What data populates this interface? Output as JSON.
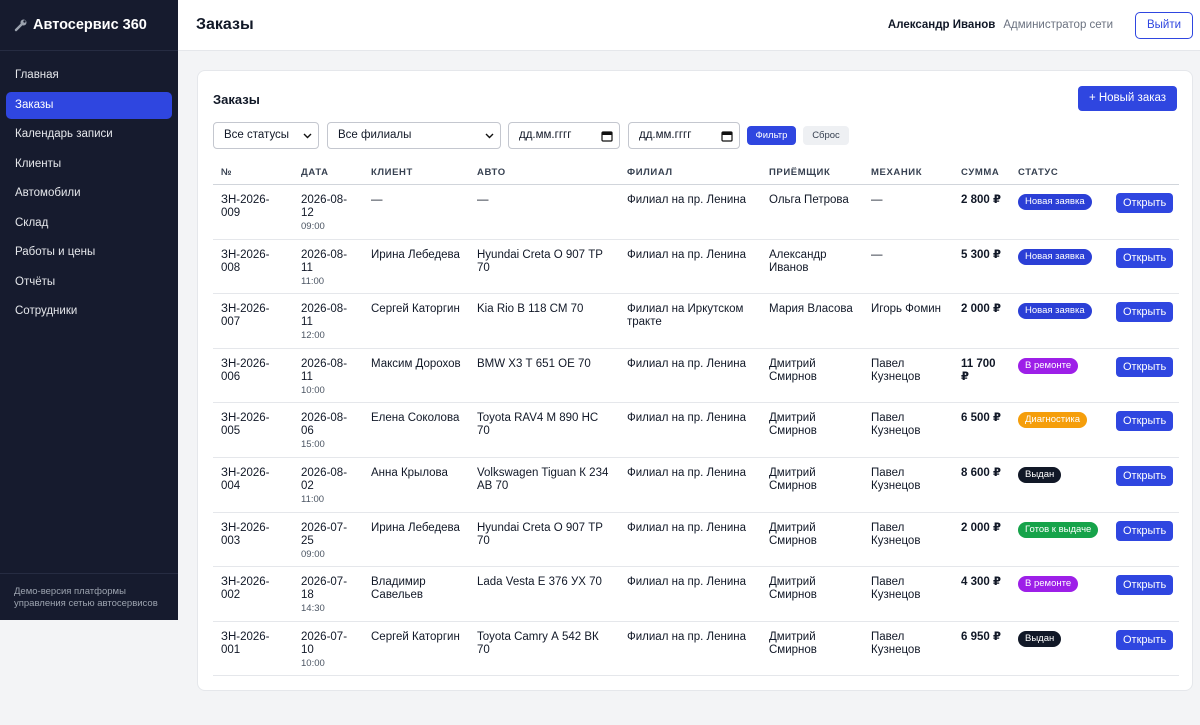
{
  "sidebar": {
    "logo": "Автосервис 360",
    "nav": [
      "Главная",
      "Заказы",
      "Календарь записи",
      "Клиенты",
      "Автомобили",
      "Склад",
      "Работы и цены",
      "Отчёты",
      "Сотрудники"
    ],
    "footer": "Демо-версия платформы управления сетью автосервисов"
  },
  "header": {
    "title": "Заказы",
    "user": "Александр Иванов",
    "role": "Администратор сети",
    "logout": "Выйти"
  },
  "card": {
    "title": "Заказы",
    "new_button": "+ Новый заказ",
    "filters": {
      "status": "Все статусы",
      "branch": "Все филиалы",
      "date_from": "дд.мм.гггг",
      "date_to": "дд.мм.гггг",
      "apply": "Фильтр",
      "reset": "Сброс"
    }
  },
  "table": {
    "columns": [
      "№",
      "ДАТА",
      "КЛИЕНТ",
      "АВТО",
      "ФИЛИАЛ",
      "ПРИЁМЩИК",
      "МЕХАНИК",
      "СУММА",
      "СТАТУС"
    ],
    "rows": [
      {
        "id": "ЗН-2026-009",
        "date": "2026-08-12",
        "time": "09:00",
        "client": "—",
        "car": "—",
        "branch": "Филиал на пр. Ленина",
        "receiver": "Ольга Петрова",
        "mechanic": "—",
        "sum": "2 800 ₽",
        "status": "Новая заявка",
        "action": "Открыть"
      },
      {
        "id": "ЗН-2026-008",
        "date": "2026-08-11",
        "time": "11:00",
        "client": "Ирина Лебедева",
        "car": "Hyundai Creta О 907 ТР 70",
        "branch": "Филиал на пр. Ленина",
        "receiver": "Александр Иванов",
        "mechanic": "—",
        "sum": "5 300 ₽",
        "status": "Новая заявка",
        "action": "Открыть"
      },
      {
        "id": "ЗН-2026-007",
        "date": "2026-08-11",
        "time": "12:00",
        "client": "Сергей Каторгин",
        "car": "Kia Rio В 118 СМ 70",
        "branch": "Филиал на Иркутском тракте",
        "receiver": "Мария Власова",
        "mechanic": "Игорь Фомин",
        "sum": "2 000 ₽",
        "status": "Новая заявка",
        "action": "Открыть"
      },
      {
        "id": "ЗН-2026-006",
        "date": "2026-08-11",
        "time": "10:00",
        "client": "Максим Дорохов",
        "car": "BMW X3 Т 651 ОЕ 70",
        "branch": "Филиал на пр. Ленина",
        "receiver": "Дмитрий Смирнов",
        "mechanic": "Павел Кузнецов",
        "sum": "11 700 ₽",
        "status": "В ремонте",
        "action": "Открыть"
      },
      {
        "id": "ЗН-2026-005",
        "date": "2026-08-06",
        "time": "15:00",
        "client": "Елена Соколова",
        "car": "Toyota RAV4 М 890 НС 70",
        "branch": "Филиал на пр. Ленина",
        "receiver": "Дмитрий Смирнов",
        "mechanic": "Павел Кузнецов",
        "sum": "6 500 ₽",
        "status": "Диагностика",
        "action": "Открыть"
      },
      {
        "id": "ЗН-2026-004",
        "date": "2026-08-02",
        "time": "11:00",
        "client": "Анна Крылова",
        "car": "Volkswagen Tiguan К 234 АВ 70",
        "branch": "Филиал на пр. Ленина",
        "receiver": "Дмитрий Смирнов",
        "mechanic": "Павел Кузнецов",
        "sum": "8 600 ₽",
        "status": "Выдан",
        "action": "Открыть"
      },
      {
        "id": "ЗН-2026-003",
        "date": "2026-07-25",
        "time": "09:00",
        "client": "Ирина Лебедева",
        "car": "Hyundai Creta О 907 ТР 70",
        "branch": "Филиал на пр. Ленина",
        "receiver": "Дмитрий Смирнов",
        "mechanic": "Павел Кузнецов",
        "sum": "2 000 ₽",
        "status": "Готов к выдаче",
        "action": "Открыть"
      },
      {
        "id": "ЗН-2026-002",
        "date": "2026-07-18",
        "time": "14:30",
        "client": "Владимир Савельев",
        "car": "Lada Vesta Е 376 УХ 70",
        "branch": "Филиал на пр. Ленина",
        "receiver": "Дмитрий Смирнов",
        "mechanic": "Павел Кузнецов",
        "sum": "4 300 ₽",
        "status": "В ремонте",
        "action": "Открыть"
      },
      {
        "id": "ЗН-2026-001",
        "date": "2026-07-10",
        "time": "10:00",
        "client": "Сергей Каторгин",
        "car": "Toyota Camry А 542 ВК 70",
        "branch": "Филиал на пр. Ленина",
        "receiver": "Дмитрий Смирнов",
        "mechanic": "Павел Кузнецов",
        "sum": "6 950 ₽",
        "status": "Выдан",
        "action": "Открыть"
      }
    ]
  }
}
